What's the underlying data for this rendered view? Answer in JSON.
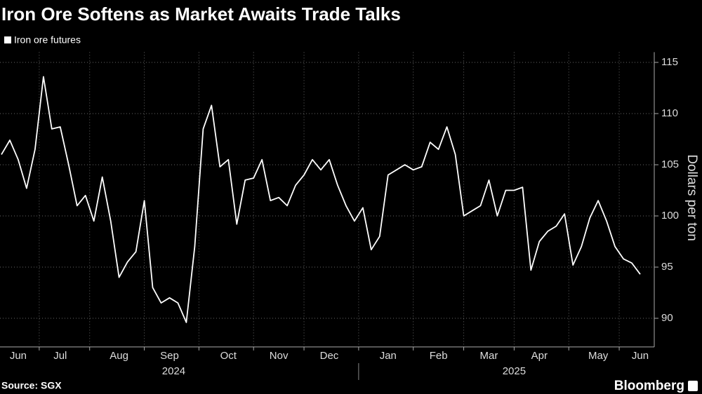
{
  "chart_data": {
    "type": "line",
    "title": "Iron Ore Softens as Market Awaits Trade Talks",
    "y_label": "Dollars per ton",
    "source": "Source: SGX",
    "brand": "Bloomberg",
    "categories": [
      null,
      null,
      "Jun",
      null,
      null,
      null,
      null,
      "Jul",
      null,
      null,
      null,
      null,
      null,
      null,
      "Aug",
      null,
      null,
      null,
      null,
      null,
      "Sep",
      null,
      null,
      null,
      null,
      null,
      null,
      "Oct",
      null,
      null,
      null,
      null,
      null,
      "Nov",
      null,
      null,
      null,
      null,
      null,
      "Dec",
      null,
      null,
      null,
      null,
      null,
      null,
      "Jan",
      null,
      null,
      null,
      null,
      null,
      "Feb",
      null,
      null,
      null,
      null,
      null,
      "Mar",
      null,
      null,
      null,
      null,
      null,
      "Apr",
      null,
      null,
      null,
      null,
      null,
      null,
      "May",
      null,
      null,
      null,
      null,
      "Jun"
    ],
    "year_labels": [
      "2024",
      "2025"
    ],
    "series": [
      {
        "name": "Iron ore futures",
        "color": "#ffffff",
        "values": [
          106,
          107.4,
          105.5,
          102.7,
          106.5,
          113.6,
          108.5,
          108.7,
          105,
          101,
          102,
          99.5,
          103.8,
          99.5,
          94,
          95.5,
          96.5,
          101.5,
          93,
          91.5,
          92,
          91.5,
          89.6,
          97,
          108.5,
          110.8,
          104.8,
          105.5,
          99.2,
          103.5,
          103.7,
          105.5,
          101.5,
          101.8,
          101,
          103,
          104,
          105.5,
          104.5,
          105.5,
          103,
          101,
          99.5,
          100.8,
          96.7,
          98,
          104,
          104.5,
          105,
          104.5,
          104.8,
          107.2,
          106.5,
          108.7,
          106,
          100,
          100.5,
          101,
          103.5,
          100,
          102.5,
          102.5,
          102.8,
          94.7,
          97.5,
          98.5,
          99,
          100.2,
          95.2,
          97,
          99.8,
          101.5,
          99.5,
          97,
          95.8,
          95.4,
          94.3
        ]
      }
    ],
    "ylim": [
      87.2,
      116
    ],
    "yticks": [
      90,
      95,
      100,
      105,
      110,
      115
    ],
    "grid": true,
    "legend": "top-left"
  }
}
